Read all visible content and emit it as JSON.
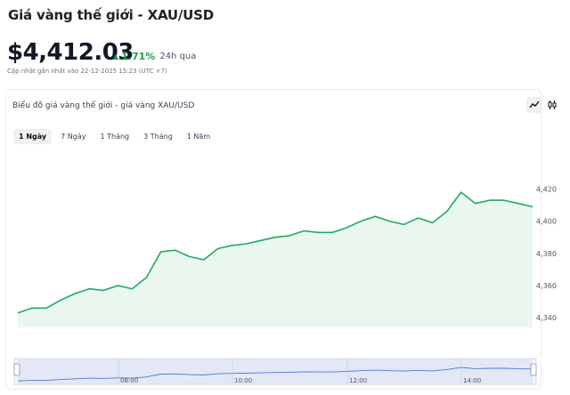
{
  "header": {
    "title": "Giá vàng thế giới - XAU/USD",
    "price": "$4,412.03",
    "change_pct": "1.71%",
    "change_period": "24h qua",
    "updated": "Cập nhật gần nhất vào 22-12-2025 15:23 (UTC +7)"
  },
  "card": {
    "title": "Biểu đồ giá vàng thế giới - giá vàng XAU/USD",
    "chart_types": [
      "line-chart-icon",
      "candlestick-icon"
    ],
    "ranges": [
      {
        "label": "1 Ngày",
        "active": true
      },
      {
        "label": "7 Ngày",
        "active": false
      },
      {
        "label": "1 Tháng",
        "active": false
      },
      {
        "label": "3 Tháng",
        "active": false
      },
      {
        "label": "1 Năm",
        "active": false
      }
    ]
  },
  "colors": {
    "line": "#22a861",
    "fill": "#eaf7ee",
    "up": "#16a34a",
    "navigator": "#dbe1f4"
  },
  "chart_data": {
    "type": "area",
    "y_ticks": [
      "4,340",
      "4,360",
      "4,380",
      "4,400",
      "4,420"
    ],
    "ylim": [
      4334,
      4428
    ],
    "x_ticks": [
      "08:00",
      "10:00",
      "12:00",
      "14:00"
    ],
    "values": [
      4343,
      4346,
      4346,
      4351,
      4355,
      4358,
      4357,
      4360,
      4358,
      4365,
      4381,
      4382,
      4378,
      4376,
      4383,
      4385,
      4386,
      4388,
      4390,
      4391,
      4394,
      4393,
      4393,
      4396,
      4400,
      4403,
      4400,
      4398,
      4402,
      4399,
      4406,
      4418,
      4411,
      4413,
      4413,
      4411,
      4409
    ],
    "grid": false
  }
}
